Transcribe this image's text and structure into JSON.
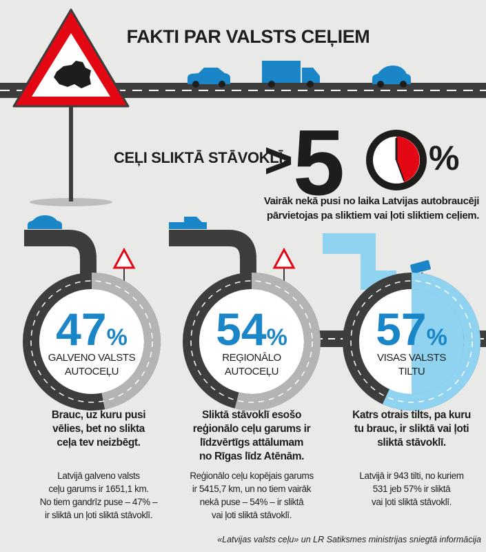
{
  "title": "FAKTI PAR VALSTS CEĻIEM",
  "headline": {
    "label": "CEĻI SLIKTĀ STĀVOKLĪ:",
    "prefix": ">",
    "digit": "5",
    "unit": "%"
  },
  "subtitle_lines": [
    "Vairāk nekā pusi no laika Latvijas autobraucēji",
    "pārvietojas pa sliktiem vai ļoti sliktiem ceļiem."
  ],
  "columns": [
    {
      "percent": 47,
      "unit": "%",
      "label_lines": [
        "GALVENO VALSTS",
        "AUTOCEĻU"
      ],
      "summary_lines": [
        "Brauc, uz kuru pusi",
        "vēlies, bet no slikta",
        "ceļa tev neizbēgt."
      ],
      "detail_lines": [
        "Latvijā galveno valsts",
        "ceļu garums ir 1651,1 km.",
        "No tiem gandrīz puse – 47% –",
        "ir sliktā un ļoti sliktā stāvoklī."
      ]
    },
    {
      "percent": 54,
      "unit": "%",
      "label_lines": [
        "REĢIONĀLO",
        "AUTOCEĻU"
      ],
      "summary_lines": [
        "Sliktā stāvoklī esošo",
        "reģionālo ceļu garums ir",
        "līdzvērtīgs attālumam",
        "no Rīgas līdz Atēnām."
      ],
      "detail_lines": [
        "Reģionālo ceļu kopējais garums",
        "ir 5415,7 km, un no tiem vairāk",
        "nekā puse – 54% – ir sliktā",
        "vai ļoti sliktā stāvoklī."
      ]
    },
    {
      "percent": 57,
      "unit": "%",
      "label_lines": [
        "VISAS VALSTS",
        "TILTU"
      ],
      "summary_lines": [
        "Katrs otrais tilts, pa kuru",
        "tu brauc, ir sliktā vai ļoti",
        "sliktā stāvoklī."
      ],
      "detail_lines": [
        "Latvijā ir 943 tilti, no kuriem",
        "531 jeb 57% ir sliktā",
        "vai ļoti sliktā stāvoklī."
      ]
    }
  ],
  "footer": "«Latvijas valsts ceļu» un LR Satiksmes ministrijas sniegtā informācija"
}
